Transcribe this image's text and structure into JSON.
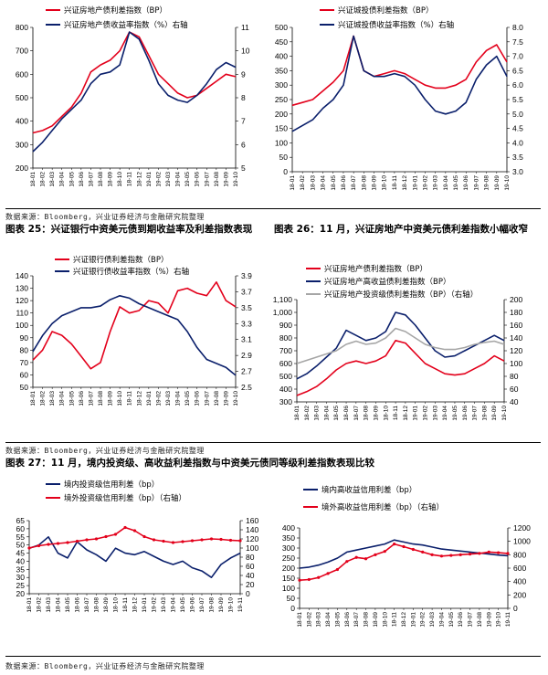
{
  "source_text": "数据来源：Bloomberg，兴业证券经济与金融研究院整理",
  "captions": {
    "fig25": "图表 25：兴证银行中资美元债到期收益率及利差指数表现",
    "fig26": "图表 26：11 月，兴证房地产中资美元债利差指数小幅收窄",
    "fig27": "图表 27：11 月，境内投资级、高收益利差指数与中资美元债同等级利差指数表现比较"
  },
  "colors": {
    "red": "#e3001b",
    "navy": "#0a1f6b",
    "gray": "#a6a6a6"
  },
  "chart_data": [
    {
      "id": "c1",
      "type": "line",
      "x_ticks": [
        "18-01",
        "18-02",
        "18-03",
        "18-04",
        "18-05",
        "18-06",
        "18-07",
        "18-08",
        "18-09",
        "18-10",
        "18-11",
        "18-12",
        "19-01",
        "19-02",
        "19-03",
        "19-04",
        "19-05",
        "19-06",
        "19-07",
        "19-08",
        "19-09",
        "19-10"
      ],
      "y_left": {
        "range": [
          200,
          800
        ],
        "ticks": [
          200,
          300,
          400,
          500,
          600,
          700,
          800
        ]
      },
      "y_right": {
        "range": [
          5,
          11
        ],
        "ticks": [
          5,
          6,
          7,
          8,
          9,
          10,
          11
        ]
      },
      "series": [
        {
          "name": "兴证房地产债利差指数（BP）",
          "color": "red",
          "axis": "left",
          "values": [
            350,
            360,
            380,
            420,
            460,
            520,
            610,
            640,
            660,
            700,
            780,
            760,
            680,
            600,
            560,
            520,
            500,
            510,
            540,
            570,
            600,
            590
          ]
        },
        {
          "name": "兴证房地产债收益率指数（%）右轴",
          "color": "navy",
          "axis": "right",
          "values": [
            5.7,
            6.1,
            6.6,
            7.1,
            7.5,
            7.9,
            8.6,
            9.0,
            9.1,
            9.4,
            10.8,
            10.5,
            9.6,
            8.6,
            8.1,
            7.9,
            7.8,
            8.1,
            8.6,
            9.2,
            9.5,
            9.3
          ]
        }
      ]
    },
    {
      "id": "c2",
      "type": "line",
      "x_ticks": [
        "18-01",
        "18-02",
        "18-03",
        "18-04",
        "18-05",
        "18-06",
        "18-07",
        "18-08",
        "18-09",
        "18-10",
        "18-11",
        "18-12",
        "19-01",
        "19-02",
        "19-03",
        "19-04",
        "19-05",
        "19-06",
        "19-07",
        "19-08",
        "19-09",
        "19-10"
      ],
      "y_left": {
        "range": [
          0,
          500
        ],
        "ticks": [
          0,
          50,
          100,
          150,
          200,
          250,
          300,
          350,
          400,
          450,
          500
        ]
      },
      "y_right": {
        "range": [
          3.0,
          8.0
        ],
        "ticks": [
          "3.0",
          "3.5",
          "4.0",
          "4.5",
          "5.0",
          "5.5",
          "6.0",
          "6.5",
          "7.0",
          "7.5",
          "8.0"
        ]
      },
      "series": [
        {
          "name": "兴证城投债利差指数（BP）",
          "color": "red",
          "axis": "left",
          "values": [
            230,
            240,
            250,
            280,
            310,
            350,
            470,
            350,
            330,
            340,
            350,
            340,
            320,
            300,
            290,
            290,
            300,
            320,
            380,
            420,
            440,
            380
          ]
        },
        {
          "name": "兴证城投债收益率指数（%）右轴",
          "color": "navy",
          "axis": "right",
          "values": [
            4.4,
            4.6,
            4.8,
            5.2,
            5.5,
            6.0,
            7.7,
            6.5,
            6.3,
            6.3,
            6.4,
            6.3,
            6.0,
            5.5,
            5.1,
            5.0,
            5.1,
            5.4,
            6.2,
            6.7,
            7.0,
            6.3
          ]
        }
      ]
    },
    {
      "id": "c3",
      "type": "line",
      "x_ticks": [
        "18-01",
        "18-02",
        "18-03",
        "18-04",
        "18-05",
        "18-06",
        "18-07",
        "18-08",
        "18-09",
        "18-10",
        "18-11",
        "18-12",
        "19-01",
        "19-02",
        "19-03",
        "19-04",
        "19-05",
        "19-06",
        "19-07",
        "19-08",
        "19-09",
        "19-10"
      ],
      "y_left": {
        "range": [
          50,
          140
        ],
        "ticks": [
          50,
          60,
          70,
          80,
          90,
          100,
          110,
          120,
          130,
          140
        ]
      },
      "y_right": {
        "range": [
          2.5,
          3.9
        ],
        "ticks": [
          "2.5",
          "2.7",
          "2.9",
          "3.1",
          "3.3",
          "3.5",
          "3.7",
          "3.9"
        ]
      },
      "series": [
        {
          "name": "兴证银行债利差指数（BP）",
          "color": "red",
          "axis": "left",
          "values": [
            72,
            80,
            95,
            92,
            85,
            75,
            65,
            70,
            95,
            115,
            110,
            112,
            120,
            118,
            110,
            128,
            130,
            126,
            124,
            135,
            120,
            115
          ]
        },
        {
          "name": "兴证银行债收益率指数（%）右轴",
          "color": "navy",
          "axis": "right",
          "values": [
            2.95,
            3.15,
            3.3,
            3.4,
            3.45,
            3.5,
            3.5,
            3.52,
            3.6,
            3.65,
            3.62,
            3.55,
            3.5,
            3.45,
            3.4,
            3.35,
            3.2,
            3.0,
            2.85,
            2.8,
            2.75,
            2.65
          ]
        }
      ]
    },
    {
      "id": "c4",
      "type": "line",
      "x_ticks": [
        "18-01",
        "18-02",
        "18-03",
        "18-04",
        "18-05",
        "18-06",
        "18-07",
        "18-08",
        "18-09",
        "18-10",
        "18-11",
        "18-12",
        "19-01",
        "19-02",
        "19-03",
        "19-04",
        "19-05",
        "19-06",
        "19-07",
        "19-08",
        "19-09",
        "19-10"
      ],
      "y_left": {
        "range": [
          300,
          1100
        ],
        "ticks": [
          300,
          400,
          500,
          600,
          700,
          800,
          900,
          "1,000",
          "1,100"
        ]
      },
      "y_right": {
        "range": [
          40,
          200
        ],
        "ticks": [
          40,
          60,
          80,
          100,
          120,
          140,
          160,
          180,
          200
        ]
      },
      "series": [
        {
          "name": "兴证房地产债利差指数（BP）",
          "color": "red",
          "axis": "left",
          "values": [
            350,
            380,
            420,
            480,
            550,
            600,
            620,
            600,
            620,
            660,
            780,
            760,
            680,
            600,
            560,
            520,
            510,
            520,
            560,
            600,
            660,
            620
          ]
        },
        {
          "name": "兴证房地产高收益债利差指数（BP）",
          "color": "navy",
          "axis": "left",
          "values": [
            480,
            520,
            580,
            650,
            720,
            860,
            820,
            780,
            800,
            850,
            1000,
            980,
            900,
            800,
            700,
            650,
            660,
            700,
            740,
            780,
            820,
            780
          ]
        },
        {
          "name": "兴证房地产投资级债利差指数（BP）（右轴）",
          "color": "gray",
          "axis": "right",
          "values": [
            100,
            105,
            110,
            115,
            120,
            130,
            135,
            130,
            132,
            140,
            155,
            150,
            140,
            130,
            125,
            122,
            122,
            125,
            130,
            133,
            135,
            130
          ]
        }
      ]
    },
    {
      "id": "c5",
      "type": "line",
      "x_ticks": [
        "18-01",
        "18-02",
        "18-03",
        "18-04",
        "18-05",
        "18-06",
        "18-07",
        "18-08",
        "18-09",
        "18-10",
        "18-11",
        "18-12",
        "19-01",
        "19-02",
        "19-03",
        "19-04",
        "19-05",
        "19-06",
        "19-07",
        "19-08",
        "19-09",
        "19-10",
        "19-11"
      ],
      "y_left": {
        "range": [
          20,
          65
        ],
        "ticks": [
          20,
          25,
          30,
          35,
          40,
          45,
          50,
          55,
          60,
          65
        ]
      },
      "y_right": {
        "range": [
          0,
          160
        ],
        "ticks": [
          0,
          20,
          40,
          60,
          80,
          100,
          120,
          140,
          160
        ]
      },
      "series": [
        {
          "name": "境内投资级信用利差（bp）",
          "color": "navy",
          "axis": "left",
          "values": [
            48,
            50,
            55,
            45,
            42,
            52,
            47,
            44,
            40,
            48,
            45,
            44,
            46,
            43,
            40,
            38,
            40,
            36,
            34,
            30,
            38,
            42,
            45
          ]
        },
        {
          "name": "境外投资级信用利差（bp）（右轴）",
          "color": "red",
          "axis": "right",
          "values": [
            100,
            105,
            108,
            110,
            112,
            115,
            118,
            120,
            125,
            130,
            145,
            138,
            125,
            118,
            115,
            112,
            114,
            116,
            118,
            120,
            119,
            117,
            116
          ]
        }
      ]
    },
    {
      "id": "c6",
      "type": "line",
      "x_ticks": [
        "18-01",
        "18-02",
        "18-03",
        "18-04",
        "18-05",
        "18-06",
        "18-07",
        "18-08",
        "18-09",
        "18-10",
        "18-11",
        "18-12",
        "19-01",
        "19-02",
        "19-03",
        "19-04",
        "19-05",
        "19-06",
        "19-07",
        "19-08",
        "19-09",
        "19-10",
        "19-11"
      ],
      "y_left": {
        "range": [
          0,
          400
        ],
        "ticks": [
          0,
          50,
          100,
          150,
          200,
          250,
          300,
          350,
          400
        ]
      },
      "y_right": {
        "range": [
          0,
          1200
        ],
        "ticks": [
          0,
          200,
          400,
          600,
          800,
          1000,
          1200
        ]
      },
      "series": [
        {
          "name": "境内高收益信用利差（bp）",
          "color": "navy",
          "axis": "left",
          "values": [
            200,
            205,
            215,
            230,
            250,
            280,
            290,
            300,
            310,
            320,
            340,
            330,
            320,
            315,
            305,
            295,
            290,
            285,
            280,
            275,
            270,
            265,
            262
          ]
        },
        {
          "name": "境外高收益信用利差（bp）（右轴）",
          "color": "red",
          "axis": "right",
          "values": [
            420,
            430,
            460,
            520,
            580,
            700,
            760,
            740,
            800,
            850,
            960,
            920,
            880,
            840,
            800,
            780,
            790,
            800,
            810,
            820,
            840,
            830,
            820
          ]
        }
      ]
    }
  ]
}
